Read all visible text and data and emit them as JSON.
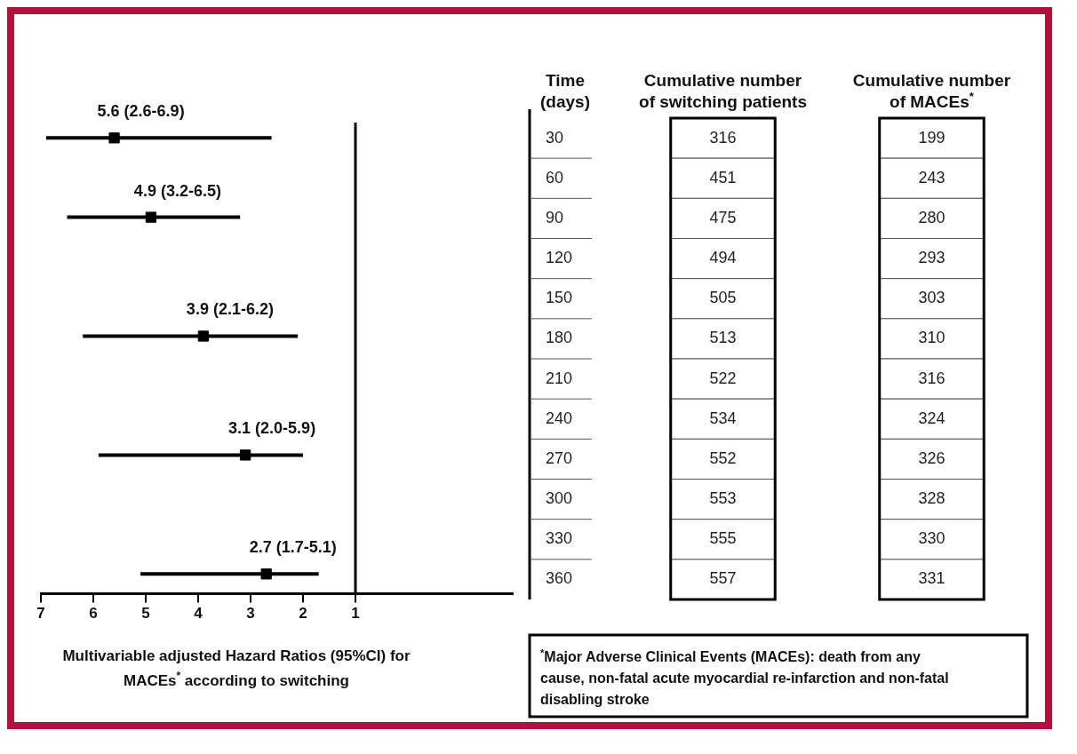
{
  "chart_data": [
    {
      "type": "scatter",
      "orientation": "horizontal",
      "categories": [
        "30",
        "60",
        "90",
        "120",
        "150",
        "180",
        "210",
        "240",
        "270",
        "300",
        "330",
        "360"
      ],
      "values": [
        5.6,
        null,
        4.9,
        null,
        null,
        3.9,
        null,
        null,
        3.1,
        null,
        null,
        2.7
      ],
      "errors": [
        [
          2.6,
          6.9
        ],
        null,
        [
          3.2,
          6.5
        ],
        null,
        null,
        [
          2.1,
          6.2
        ],
        null,
        null,
        [
          2.0,
          5.9
        ],
        null,
        null,
        [
          1.7,
          5.1
        ]
      ],
      "value_labels": [
        "5.6 (2.6-6.9)",
        null,
        "4.9 (3.2-6.5)",
        null,
        null,
        "3.9 (2.1-6.2)",
        null,
        null,
        "3.1 (2.0-5.9)",
        null,
        null,
        "2.7 (1.7-5.1)"
      ],
      "color": "#000000",
      "marker": "square",
      "xlim": [
        7,
        -2
      ],
      "xticks": [
        7,
        6,
        5,
        4,
        3,
        2,
        1
      ],
      "xlabel": "Multivariable adjusted Hazard Ratios (95%CI) for MACEs$^{*}$ according to switching",
      "tick_labels": "x",
      "ref_lines": [
        {
          "axis": "x",
          "value": 1
        }
      ],
      "grid": false,
      "legend": false
    },
    {
      "type": "heatmap",
      "categories": [
        "Cumulative number of switching patients",
        "Cumulative number of MACEs$^{*}$"
      ],
      "y_categories": [
        "30",
        "60",
        "90",
        "120",
        "150",
        "180",
        "210",
        "240",
        "270",
        "300",
        "330",
        "360"
      ],
      "cells": [
        [
          316,
          199
        ],
        [
          451,
          243
        ],
        [
          475,
          280
        ],
        [
          494,
          293
        ],
        [
          505,
          303
        ],
        [
          513,
          310
        ],
        [
          522,
          316
        ],
        [
          534,
          324
        ],
        [
          552,
          326
        ],
        [
          553,
          328
        ],
        [
          555,
          330
        ],
        [
          557,
          331
        ]
      ],
      "ylabel": "Time (days)",
      "data_labels": true,
      "annotations": [
        "$^{*}$Major Adverse Clinical Events (MACEs): death from any cause, non-fatal acute myocardial re-infarction and non-fatal disabling stroke"
      ]
    }
  ]
}
